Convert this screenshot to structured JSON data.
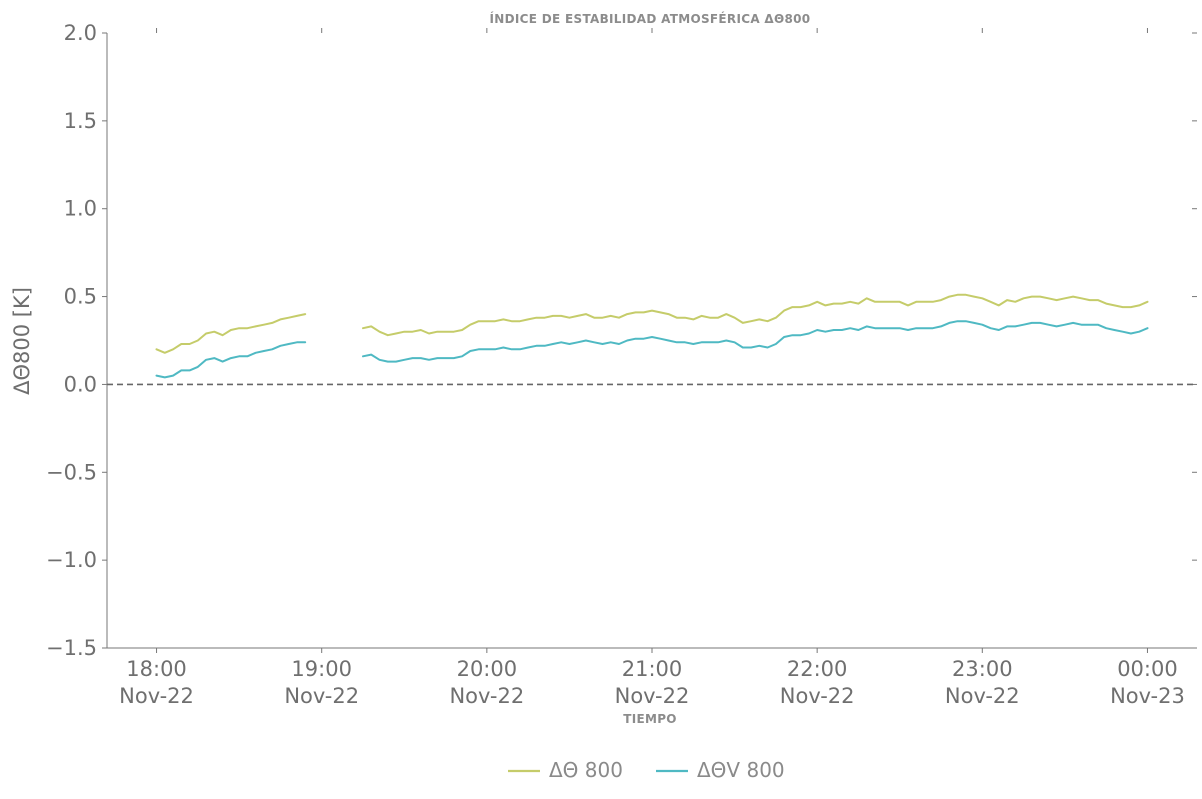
{
  "chart_data": {
    "type": "line",
    "title": "ÍNDICE DE ESTABILIDAD ATMOSFÉRICA ΔΘ800",
    "xlabel": "TIEMPO",
    "ylabel": "ΔΘ800 [K]",
    "ylim": [
      -1.5,
      2.0
    ],
    "xlim_hours": [
      17.7,
      24.3
    ],
    "yticks": [
      2.0,
      1.5,
      1.0,
      0.5,
      0.0,
      -0.5,
      -1.0,
      -1.5
    ],
    "ytick_labels": [
      "2.0",
      "1.5",
      "1.0",
      "0.5",
      "0.0",
      "−0.5",
      "−1.0",
      "−1.5"
    ],
    "xticks": [
      {
        "hour": 18,
        "time": "18:00",
        "date": "Nov-22"
      },
      {
        "hour": 19,
        "time": "19:00",
        "date": "Nov-22"
      },
      {
        "hour": 20,
        "time": "20:00",
        "date": "Nov-22"
      },
      {
        "hour": 21,
        "time": "21:00",
        "date": "Nov-22"
      },
      {
        "hour": 22,
        "time": "22:00",
        "date": "Nov-22"
      },
      {
        "hour": 23,
        "time": "23:00",
        "date": "Nov-22"
      },
      {
        "hour": 24,
        "time": "00:00",
        "date": "Nov-23"
      }
    ],
    "reference_line": {
      "y": 0.0,
      "style": "dashed",
      "color": "#666666"
    },
    "grid": false,
    "legend": {
      "position": "bottom-center"
    },
    "series": [
      {
        "name": "ΔΘ 800",
        "color": "#c5cc6a",
        "segments": [
          {
            "x": [
              18.0,
              18.05,
              18.1,
              18.15,
              18.2,
              18.25,
              18.3,
              18.35,
              18.4,
              18.45,
              18.5,
              18.55,
              18.6,
              18.65,
              18.7,
              18.75,
              18.8,
              18.85,
              18.9
            ],
            "y": [
              0.2,
              0.18,
              0.2,
              0.23,
              0.23,
              0.25,
              0.29,
              0.3,
              0.28,
              0.31,
              0.32,
              0.32,
              0.33,
              0.34,
              0.35,
              0.37,
              0.38,
              0.39,
              0.4
            ]
          },
          {
            "x": [
              19.25,
              19.3,
              19.35,
              19.4,
              19.45,
              19.5,
              19.55,
              19.6,
              19.65,
              19.7,
              19.75,
              19.8,
              19.85,
              19.9,
              19.95,
              20.0,
              20.05,
              20.1,
              20.15,
              20.2,
              20.25,
              20.3,
              20.35,
              20.4,
              20.45,
              20.5,
              20.55,
              20.6,
              20.65,
              20.7,
              20.75,
              20.8,
              20.85,
              20.9,
              20.95,
              21.0,
              21.05,
              21.1,
              21.15,
              21.2,
              21.25,
              21.3,
              21.35,
              21.4,
              21.45,
              21.5,
              21.55,
              21.6,
              21.65,
              21.7,
              21.75,
              21.8,
              21.85,
              21.9,
              21.95,
              22.0,
              22.05,
              22.1,
              22.15,
              22.2,
              22.25,
              22.3,
              22.35,
              22.4,
              22.45,
              22.5,
              22.55,
              22.6,
              22.65,
              22.7,
              22.75,
              22.8,
              22.85,
              22.9,
              22.95,
              23.0,
              23.05,
              23.1,
              23.15,
              23.2,
              23.25,
              23.3,
              23.35,
              23.4,
              23.45,
              23.5,
              23.55,
              23.6,
              23.65,
              23.7,
              23.75,
              23.8,
              23.85,
              23.9,
              23.95,
              24.0
            ],
            "y": [
              0.32,
              0.33,
              0.3,
              0.28,
              0.29,
              0.3,
              0.3,
              0.31,
              0.29,
              0.3,
              0.3,
              0.3,
              0.31,
              0.34,
              0.36,
              0.36,
              0.36,
              0.37,
              0.36,
              0.36,
              0.37,
              0.38,
              0.38,
              0.39,
              0.39,
              0.38,
              0.39,
              0.4,
              0.38,
              0.38,
              0.39,
              0.38,
              0.4,
              0.41,
              0.41,
              0.42,
              0.41,
              0.4,
              0.38,
              0.38,
              0.37,
              0.39,
              0.38,
              0.38,
              0.4,
              0.38,
              0.35,
              0.36,
              0.37,
              0.36,
              0.38,
              0.42,
              0.44,
              0.44,
              0.45,
              0.47,
              0.45,
              0.46,
              0.46,
              0.47,
              0.46,
              0.49,
              0.47,
              0.47,
              0.47,
              0.47,
              0.45,
              0.47,
              0.47,
              0.47,
              0.48,
              0.5,
              0.51,
              0.51,
              0.5,
              0.49,
              0.47,
              0.45,
              0.48,
              0.47,
              0.49,
              0.5,
              0.5,
              0.49,
              0.48,
              0.49,
              0.5,
              0.49,
              0.48,
              0.48,
              0.46,
              0.45,
              0.44,
              0.44,
              0.45,
              0.47
            ]
          }
        ]
      },
      {
        "name": "ΔΘV 800",
        "color": "#4fb9c3",
        "segments": [
          {
            "x": [
              18.0,
              18.05,
              18.1,
              18.15,
              18.2,
              18.25,
              18.3,
              18.35,
              18.4,
              18.45,
              18.5,
              18.55,
              18.6,
              18.65,
              18.7,
              18.75,
              18.8,
              18.85,
              18.9
            ],
            "y": [
              0.05,
              0.04,
              0.05,
              0.08,
              0.08,
              0.1,
              0.14,
              0.15,
              0.13,
              0.15,
              0.16,
              0.16,
              0.18,
              0.19,
              0.2,
              0.22,
              0.23,
              0.24,
              0.24
            ]
          },
          {
            "x": [
              19.25,
              19.3,
              19.35,
              19.4,
              19.45,
              19.5,
              19.55,
              19.6,
              19.65,
              19.7,
              19.75,
              19.8,
              19.85,
              19.9,
              19.95,
              20.0,
              20.05,
              20.1,
              20.15,
              20.2,
              20.25,
              20.3,
              20.35,
              20.4,
              20.45,
              20.5,
              20.55,
              20.6,
              20.65,
              20.7,
              20.75,
              20.8,
              20.85,
              20.9,
              20.95,
              21.0,
              21.05,
              21.1,
              21.15,
              21.2,
              21.25,
              21.3,
              21.35,
              21.4,
              21.45,
              21.5,
              21.55,
              21.6,
              21.65,
              21.7,
              21.75,
              21.8,
              21.85,
              21.9,
              21.95,
              22.0,
              22.05,
              22.1,
              22.15,
              22.2,
              22.25,
              22.3,
              22.35,
              22.4,
              22.45,
              22.5,
              22.55,
              22.6,
              22.65,
              22.7,
              22.75,
              22.8,
              22.85,
              22.9,
              22.95,
              23.0,
              23.05,
              23.1,
              23.15,
              23.2,
              23.25,
              23.3,
              23.35,
              23.4,
              23.45,
              23.5,
              23.55,
              23.6,
              23.65,
              23.7,
              23.75,
              23.8,
              23.85,
              23.9,
              23.95,
              24.0
            ],
            "y": [
              0.16,
              0.17,
              0.14,
              0.13,
              0.13,
              0.14,
              0.15,
              0.15,
              0.14,
              0.15,
              0.15,
              0.15,
              0.16,
              0.19,
              0.2,
              0.2,
              0.2,
              0.21,
              0.2,
              0.2,
              0.21,
              0.22,
              0.22,
              0.23,
              0.24,
              0.23,
              0.24,
              0.25,
              0.24,
              0.23,
              0.24,
              0.23,
              0.25,
              0.26,
              0.26,
              0.27,
              0.26,
              0.25,
              0.24,
              0.24,
              0.23,
              0.24,
              0.24,
              0.24,
              0.25,
              0.24,
              0.21,
              0.21,
              0.22,
              0.21,
              0.23,
              0.27,
              0.28,
              0.28,
              0.29,
              0.31,
              0.3,
              0.31,
              0.31,
              0.32,
              0.31,
              0.33,
              0.32,
              0.32,
              0.32,
              0.32,
              0.31,
              0.32,
              0.32,
              0.32,
              0.33,
              0.35,
              0.36,
              0.36,
              0.35,
              0.34,
              0.32,
              0.31,
              0.33,
              0.33,
              0.34,
              0.35,
              0.35,
              0.34,
              0.33,
              0.34,
              0.35,
              0.34,
              0.34,
              0.34,
              0.32,
              0.31,
              0.3,
              0.29,
              0.3,
              0.32
            ]
          }
        ]
      }
    ]
  }
}
